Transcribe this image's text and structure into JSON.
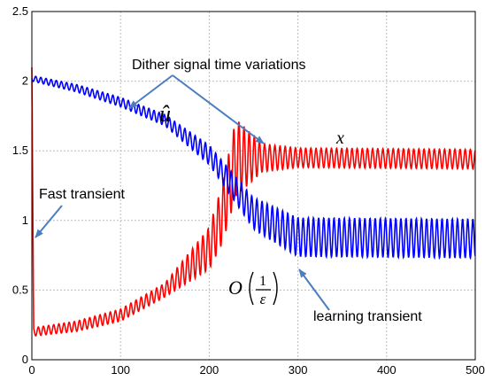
{
  "chart_data": {
    "type": "line",
    "xlim": [
      0,
      500
    ],
    "ylim": [
      0,
      2.5
    ],
    "x_ticks": [
      "0",
      "100",
      "200",
      "300",
      "400",
      "500"
    ],
    "y_ticks": [
      "0",
      "0.5",
      "1",
      "1.5",
      "2",
      "2.5"
    ],
    "grid": true,
    "series": [
      {
        "name": "x",
        "color": "#ff0000",
        "samples": [
          [
            0,
            2.1
          ],
          [
            2,
            0.2
          ],
          [
            50,
            0.24
          ],
          [
            100,
            0.32
          ],
          [
            150,
            0.5
          ],
          [
            200,
            0.8
          ],
          [
            215,
            1.05
          ],
          [
            230,
            1.45
          ],
          [
            300,
            1.45
          ],
          [
            500,
            1.44
          ]
        ],
        "oscillation_amplitude": [
          [
            0,
            0.03
          ],
          [
            150,
            0.05
          ],
          [
            200,
            0.15
          ],
          [
            230,
            0.28
          ],
          [
            260,
            0.1
          ],
          [
            300,
            0.07
          ],
          [
            500,
            0.07
          ]
        ]
      },
      {
        "name": "û",
        "color": "#0000ff",
        "samples": [
          [
            0,
            2.02
          ],
          [
            50,
            1.95
          ],
          [
            100,
            1.85
          ],
          [
            150,
            1.72
          ],
          [
            200,
            1.47
          ],
          [
            250,
            1.05
          ],
          [
            300,
            0.88
          ],
          [
            500,
            0.87
          ]
        ],
        "oscillation_amplitude": [
          [
            0,
            0.02
          ],
          [
            150,
            0.04
          ],
          [
            200,
            0.07
          ],
          [
            260,
            0.12
          ],
          [
            300,
            0.14
          ],
          [
            500,
            0.14
          ]
        ]
      }
    ],
    "annotations": [
      {
        "text": "Dither signal time variations"
      },
      {
        "text": "Fast transient"
      },
      {
        "text": "learning transient"
      }
    ],
    "math_labels": {
      "u_hat": "û",
      "x_var": "x",
      "big_o": "O",
      "one": "1",
      "epsilon": "ε"
    }
  }
}
